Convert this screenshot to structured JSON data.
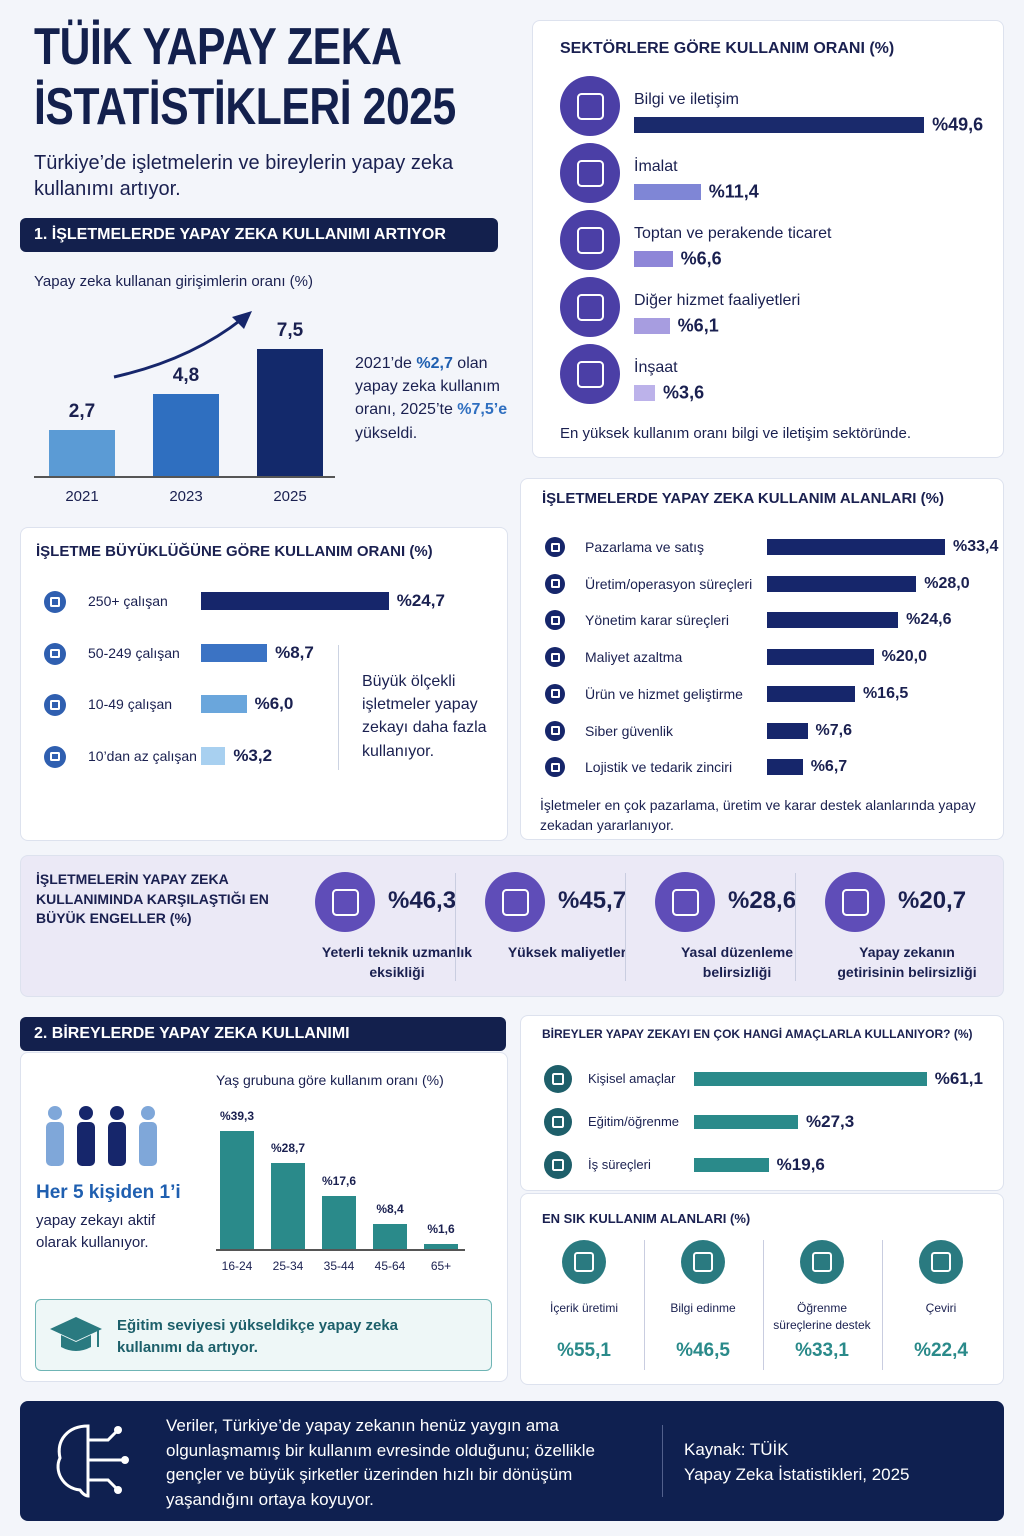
{
  "header": {
    "title": "TÜİK YAPAY ZEKA İSTATİSTİKLERİ 2025",
    "subtitle": "Türkiye’de işletmelerin ve bireylerin yapay zeka kullanımı artıyor."
  },
  "section1": {
    "heading": "1. İŞLETMELERDE YAPAY ZEKA KULLANIMI ARTIYOR"
  },
  "section2": {
    "heading": "2. BİREYLERDE YAPAY ZEKA KULLANIMI",
    "highlight": "Her 5 kişiden 1’i",
    "text": "yapay zekayı aktif olarak kullanıyor.",
    "education_note": "Eğitim seviyesi yükseldikçe yapay zeka kullanımı da artıyor."
  },
  "footer": {
    "text": "Veriler, Türkiye’de yapay zekanın henüz yaygın ama olgunlaşmamış bir kullanım evresinde olduğunu; özellikle gençler ve büyük şirketler üzerinden hızlı bir dönüşüm yaşandığını ortaya koyuyor.",
    "source": "Kaynak: TÜİK",
    "source_detail": "Yapay Zeka İstatistikleri, 2025"
  },
  "chart_data": [
    {
      "type": "bar",
      "title": "Yapay zeka kullanan girişimlerin oranı (%)",
      "categories": [
        "2021",
        "2023",
        "2025"
      ],
      "values": [
        2.7,
        4.8,
        7.5
      ],
      "value_labels": [
        "2,7",
        "4,8",
        "7,5"
      ],
      "colors": [
        "#5b9bd5",
        "#2f6fc0",
        "#13296b"
      ],
      "annotation": [
        "2021’de ",
        "%2,7",
        " olan yapay zeka kullanım oranı, 2025’te ",
        "%7,5’e",
        " yükseldi."
      ]
    },
    {
      "type": "hbar",
      "title": "SEKTÖRLERE GÖRE KULLANIM ORANI (%)",
      "categories": [
        "Bilgi ve iletişim",
        "İmalat",
        "Toptan ve perakende ticaret",
        "Diğer hizmet faaliyetleri",
        "İnşaat"
      ],
      "values": [
        49.6,
        11.4,
        6.6,
        6.1,
        3.6
      ],
      "value_labels": [
        "%49,6",
        "%11,4",
        "%6,6",
        "%6,1",
        "%3,6"
      ],
      "colors": [
        "#1a2a6c",
        "#7f86d6",
        "#8e86d8",
        "#a79de0",
        "#bcb2ea"
      ],
      "note": "En yüksek kullanım oranı bilgi ve iletişim sektöründe."
    },
    {
      "type": "hbar",
      "title": "İŞLETME BÜYÜKLÜĞÜNE GÖRE KULLANIM ORANI (%)",
      "categories": [
        "250+ çalışan",
        "50-249 çalışan",
        "10-49 çalışan",
        "10’dan az çalışan"
      ],
      "values": [
        24.7,
        8.7,
        6.0,
        3.2
      ],
      "value_labels": [
        "%24,7",
        "%8,7",
        "%6,0",
        "%3,2"
      ],
      "colors": [
        "#16266b",
        "#3b73c4",
        "#6aa6dc",
        "#a8d0f0"
      ],
      "note": "Büyük ölçekli işletmeler yapay zekayı daha fazla kullanıyor."
    },
    {
      "type": "hbar",
      "title": "İŞLETMELERDE YAPAY ZEKA KULLANIM ALANLARI (%)",
      "categories": [
        "Pazarlama ve satış",
        "Üretim/operasyon süreçleri",
        "Yönetim karar süreçleri",
        "Maliyet azaltma",
        "Ürün ve hizmet geliştirme",
        "Siber güvenlik",
        "Lojistik ve tedarik zinciri"
      ],
      "values": [
        33.4,
        28.0,
        24.6,
        20.0,
        16.5,
        7.6,
        6.7
      ],
      "value_labels": [
        "%33,4",
        "%28,0",
        "%24,6",
        "%20,0",
        "%16,5",
        "%7,6",
        "%6,7"
      ],
      "color": "#16266b",
      "note": "İşletmeler en çok pazarlama, üretim ve karar destek alanlarında yapay zekadan yararlanıyor."
    },
    {
      "type": "stat",
      "title": "İŞLETMELERİN YAPAY ZEKA KULLANIMINDA KARŞILAŞTIĞI EN BÜYÜK ENGELLER (%)",
      "categories": [
        "Yeterli teknik uzmanlık eksikliği",
        "Yüksek maliyetler",
        "Yasal düzenleme belirsizliği",
        "Yapay zekanın getirisinin belirsizliği"
      ],
      "values": [
        46.3,
        45.7,
        28.6,
        20.7
      ],
      "value_labels": [
        "%46,3",
        "%45,7",
        "%28,6",
        "%20,7"
      ],
      "color": "#1a2050"
    },
    {
      "type": "bar",
      "title": "Yaş grubuna göre kullanım oranı (%)",
      "categories": [
        "16-24",
        "25-34",
        "35-44",
        "45-64",
        "65+"
      ],
      "values": [
        39.3,
        28.7,
        17.6,
        8.4,
        1.6
      ],
      "value_labels": [
        "%39,3",
        "%28,7",
        "%17,6",
        "%8,4",
        "%1,6"
      ],
      "color": "#2a8a8a"
    },
    {
      "type": "hbar",
      "title": "BİREYLER YAPAY ZEKAYI EN ÇOK HANGİ AMAÇLARLA KULLANIYOR? (%)",
      "categories": [
        "Kişisel amaçlar",
        "Eğitim/öğrenme",
        "İş süreçleri"
      ],
      "values": [
        61.1,
        27.3,
        19.6
      ],
      "value_labels": [
        "%61,1",
        "%27,3",
        "%19,6"
      ],
      "color": "#2a8a8a"
    },
    {
      "type": "stat",
      "title": "EN SIK KULLANIM ALANLARI (%)",
      "categories": [
        "İçerik üretimi",
        "Bilgi edinme",
        "Öğrenme süreçlerine destek",
        "Çeviri"
      ],
      "values": [
        55.1,
        46.5,
        33.1,
        22.4
      ],
      "value_labels": [
        "%55,1",
        "%46,5",
        "%33,1",
        "%22,4"
      ],
      "color": "#2a8a8a"
    }
  ]
}
